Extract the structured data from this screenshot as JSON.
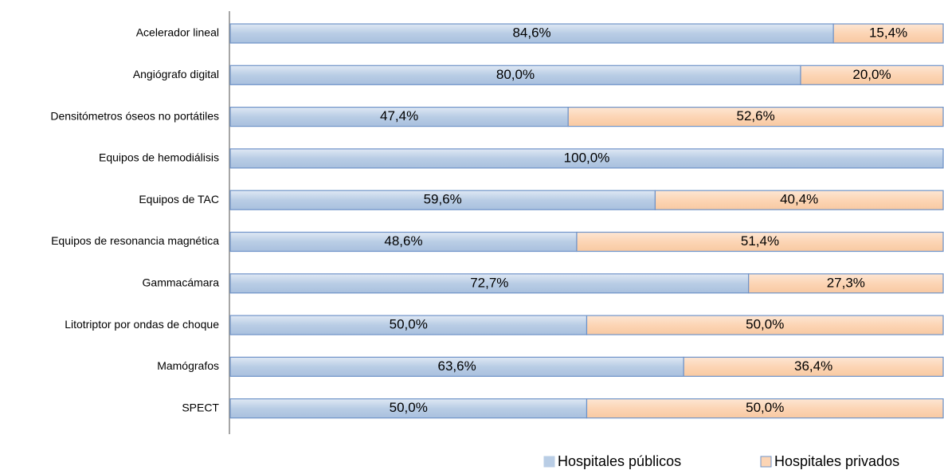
{
  "chart_data": {
    "type": "bar",
    "orientation": "horizontal",
    "stacked": true,
    "categories": [
      "Acelerador lineal",
      "Angiógrafo digital",
      "Densitómetros óseos no portátiles",
      "Equipos de hemodiálisis",
      "Equipos de TAC",
      "Equipos de resonancia magnética",
      "Gammacámara",
      "Litotriptor por ondas de choque",
      "Mamógrafos",
      "SPECT"
    ],
    "series": [
      {
        "name": "Hospitales públicos",
        "color": "#b9cde5",
        "values": [
          84.6,
          80.0,
          47.4,
          100.0,
          59.6,
          48.6,
          72.7,
          50.0,
          63.6,
          50.0
        ],
        "value_labels": [
          "84,6%",
          "80,0%",
          "47,4%",
          "100,0%",
          "59,6%",
          "48,6%",
          "72,7%",
          "50,0%",
          "63,6%",
          "50,0%"
        ]
      },
      {
        "name": "Hospitales privados",
        "color": "#fcd5b5",
        "values": [
          15.4,
          20.0,
          52.6,
          0,
          40.4,
          51.4,
          27.3,
          50.0,
          36.4,
          50.0
        ],
        "value_labels": [
          "15,4%",
          "20,0%",
          "52,6%",
          null,
          "40,4%",
          "51,4%",
          "27,3%",
          "50,0%",
          "36,4%",
          "50,0%"
        ]
      }
    ],
    "xlim": [
      0,
      100
    ],
    "legend": "bottom"
  }
}
